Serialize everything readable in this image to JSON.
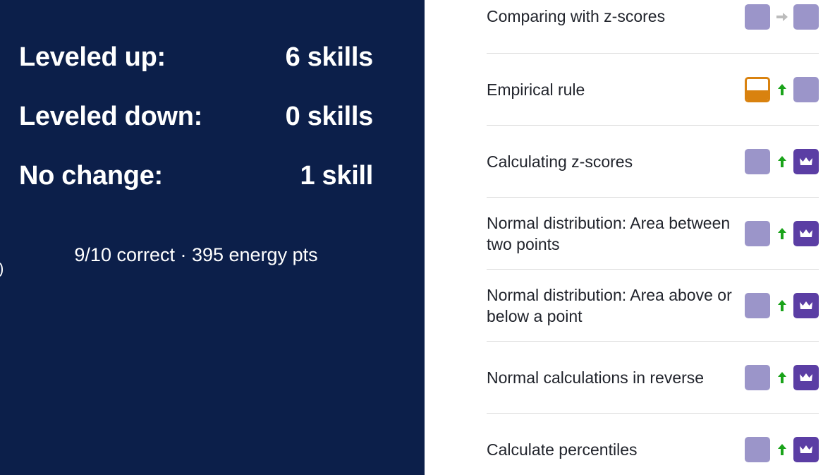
{
  "summary_panel": {
    "stats": [
      {
        "label": "Leveled up:",
        "value": "6 skills"
      },
      {
        "label": "Leveled down:",
        "value": "0 skills"
      },
      {
        "label": "No change:",
        "value": "1 skill"
      }
    ],
    "result_text": "9/10 correct · 395 energy pts"
  },
  "colors": {
    "panel_bg": "#0c1f4a",
    "familiar": "#9b95c9",
    "mastered": "#5b3ea4",
    "attempted": "#d9820f",
    "level_up_arrow": "#1aa31a",
    "no_change_arrow": "#bcbcbc"
  },
  "skills": [
    {
      "name": "Comparing with z-scores",
      "from": "familiar",
      "change": "none",
      "to": "familiar"
    },
    {
      "name": "Empirical rule",
      "from": "attempted",
      "change": "up",
      "to": "familiar"
    },
    {
      "name": "Calculating z-scores",
      "from": "familiar",
      "change": "up",
      "to": "mastered"
    },
    {
      "name": "Normal distribution: Area between two points",
      "from": "familiar",
      "change": "up",
      "to": "mastered"
    },
    {
      "name": "Normal distribution: Area above or below a point",
      "from": "familiar",
      "change": "up",
      "to": "mastered"
    },
    {
      "name": "Normal calculations in reverse",
      "from": "familiar",
      "change": "up",
      "to": "mastered"
    },
    {
      "name": "Calculate percentiles",
      "from": "familiar",
      "change": "up",
      "to": "mastered"
    }
  ],
  "icons": {
    "up": "arrow-up-icon",
    "none": "arrow-right-icon",
    "mastered": "crown-icon"
  }
}
